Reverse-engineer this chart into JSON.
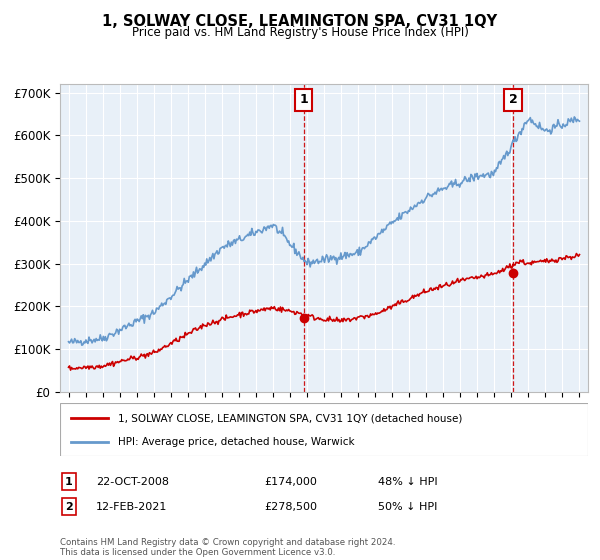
{
  "title": "1, SOLWAY CLOSE, LEAMINGTON SPA, CV31 1QY",
  "subtitle": "Price paid vs. HM Land Registry's House Price Index (HPI)",
  "legend_label_red": "1, SOLWAY CLOSE, LEAMINGTON SPA, CV31 1QY (detached house)",
  "legend_label_blue": "HPI: Average price, detached house, Warwick",
  "annotation1_label": "1",
  "annotation1_date": "22-OCT-2008",
  "annotation1_price": "£174,000",
  "annotation1_hpi": "48% ↓ HPI",
  "annotation2_label": "2",
  "annotation2_date": "12-FEB-2021",
  "annotation2_price": "£278,500",
  "annotation2_hpi": "50% ↓ HPI",
  "footer": "Contains HM Land Registry data © Crown copyright and database right 2024.\nThis data is licensed under the Open Government Licence v3.0.",
  "ylim": [
    0,
    720000
  ],
  "yticks": [
    0,
    100000,
    200000,
    300000,
    400000,
    500000,
    600000,
    700000
  ],
  "ytick_labels": [
    "£0",
    "£100K",
    "£200K",
    "£300K",
    "£400K",
    "£500K",
    "£600K",
    "£700K"
  ],
  "background_color": "#ffffff",
  "plot_bg_color": "#e8f0f8",
  "grid_color": "#ffffff",
  "red_color": "#cc0000",
  "blue_color": "#6699cc",
  "annotation_box_color": "#cc0000",
  "sale1_year": 2008.8,
  "sale2_year": 2021.1,
  "sale1_price": 174000,
  "sale2_price": 278500
}
